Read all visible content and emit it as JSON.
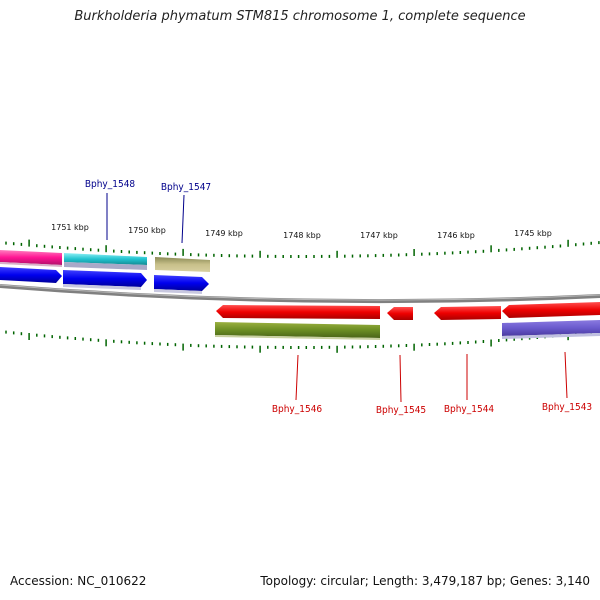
{
  "title": "Burkholderia phymatum STM815 chromosome 1, complete sequence",
  "footer": {
    "accession": "Accession: NC_010622",
    "summary": "Topology: circular; Length: 3,479,187 bp; Genes: 3,140"
  },
  "colors": {
    "forward_label": "#00008b",
    "reverse_label": "#cc0000",
    "tick": "#006400",
    "backbone": "#808080"
  },
  "scale_labels": [
    "1751 kbp",
    "1750 kbp",
    "1749 kbp",
    "1748 kbp",
    "1747 kbp",
    "1746 kbp",
    "1745 kbp"
  ],
  "gene_labels": {
    "forward": [
      "Bphy_1548",
      "Bphy_1547"
    ],
    "reverse": [
      "Bphy_1546",
      "Bphy_1545",
      "Bphy_1544",
      "Bphy_1543"
    ]
  }
}
